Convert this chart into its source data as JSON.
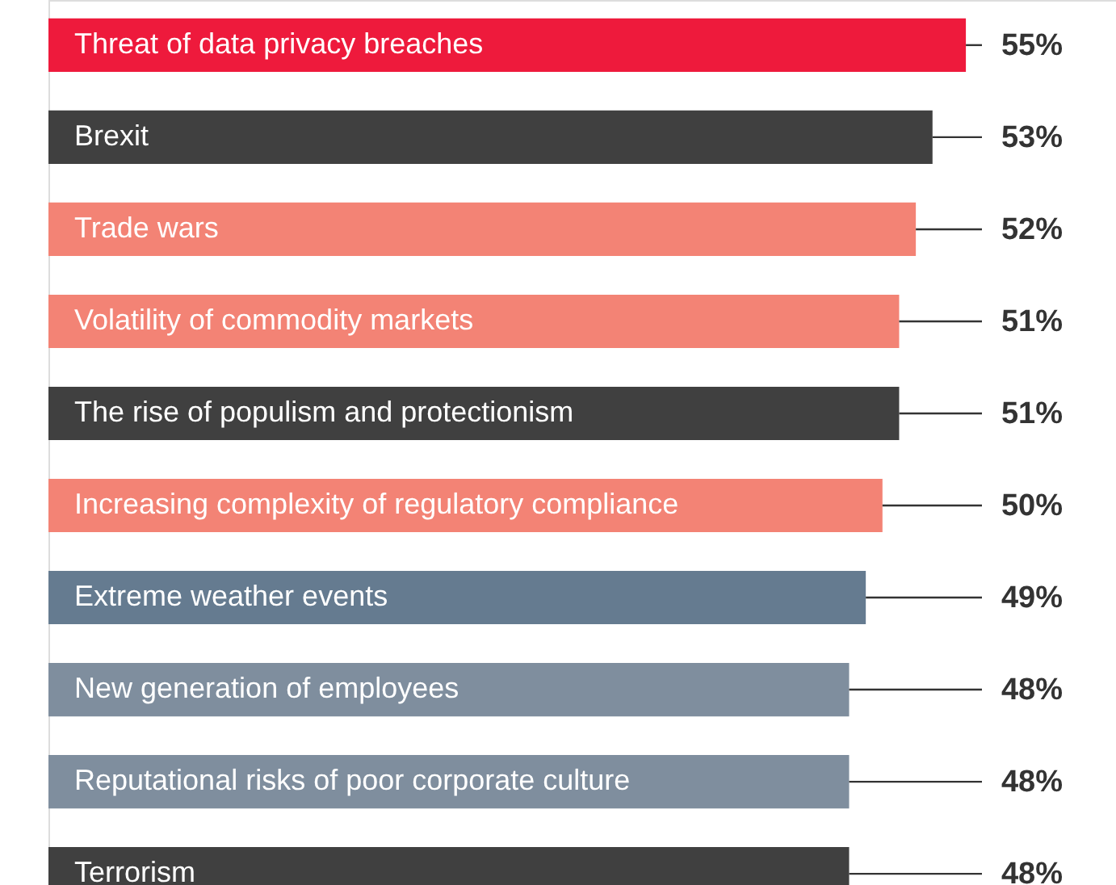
{
  "chart_data": {
    "type": "bar",
    "orientation": "horizontal",
    "categories": [
      "Threat of data privacy breaches",
      "Brexit",
      "Trade wars",
      "Volatility of commodity markets",
      "The rise of populism and protectionism",
      "Increasing complexity of regulatory compliance",
      "Extreme weather events",
      "New generation of employees",
      "Reputational risks of poor corporate culture",
      "Terrorism"
    ],
    "values": [
      55,
      53,
      52,
      51,
      51,
      50,
      49,
      48,
      48,
      48
    ],
    "colors": [
      "#ee1a3c",
      "#404040",
      "#f38375",
      "#f38375",
      "#404040",
      "#f38375",
      "#657b90",
      "#7f8e9e",
      "#7f8e9e",
      "#404040"
    ],
    "value_labels": [
      "55%",
      "53%",
      "52%",
      "51%",
      "51%",
      "50%",
      "49%",
      "48%",
      "48%",
      "48%"
    ],
    "xlim": [
      0,
      64
    ]
  }
}
